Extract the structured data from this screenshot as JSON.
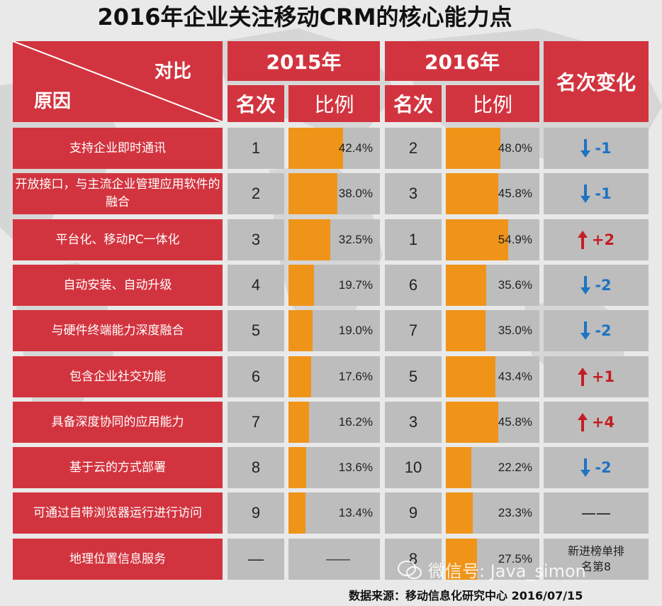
{
  "title": "2016年企业关注移动CRM的核心能力点",
  "header": {
    "compare": "对比",
    "reason": "原因",
    "year2015": "2015年",
    "year2016": "2016年",
    "rank": "名次",
    "ratio": "比例",
    "change": "名次变化"
  },
  "colors": {
    "red": "#d2343f",
    "orange": "#ef9419",
    "down": "#1f73c4",
    "up": "#c41e24",
    "gray": "#bdbdbd"
  },
  "chart_data": {
    "type": "table",
    "title": "2016年企业关注移动CRM的核心能力点",
    "columns": [
      "原因",
      "2015年 名次",
      "2015年 比例",
      "2016年 名次",
      "2016年 比例",
      "名次变化"
    ],
    "rows": [
      {
        "reason": "支持企业即时通讯",
        "rank2015": "1",
        "pct2015": 42.4,
        "pct2015_label": "42.4%",
        "rank2016": "2",
        "pct2016": 48.0,
        "pct2016_label": "48.0%",
        "dir": "down",
        "change": "-1",
        "note": ""
      },
      {
        "reason": "开放接口，与主流企业管理应用软件的融合",
        "rank2015": "2",
        "pct2015": 38.0,
        "pct2015_label": "38.0%",
        "rank2016": "3",
        "pct2016": 45.8,
        "pct2016_label": "45.8%",
        "dir": "down",
        "change": "-1",
        "note": ""
      },
      {
        "reason": "平台化、移动PC一体化",
        "rank2015": "3",
        "pct2015": 32.5,
        "pct2015_label": "32.5%",
        "rank2016": "1",
        "pct2016": 54.9,
        "pct2016_label": "54.9%",
        "dir": "up",
        "change": "+2",
        "note": ""
      },
      {
        "reason": "自动安装、自动升级",
        "rank2015": "4",
        "pct2015": 19.7,
        "pct2015_label": "19.7%",
        "rank2016": "6",
        "pct2016": 35.6,
        "pct2016_label": "35.6%",
        "dir": "down",
        "change": "-2",
        "note": ""
      },
      {
        "reason": "与硬件终端能力深度融合",
        "rank2015": "5",
        "pct2015": 19.0,
        "pct2015_label": "19.0%",
        "rank2016": "7",
        "pct2016": 35.0,
        "pct2016_label": "35.0%",
        "dir": "down",
        "change": "-2",
        "note": ""
      },
      {
        "reason": "包含企业社交功能",
        "rank2015": "6",
        "pct2015": 17.6,
        "pct2015_label": "17.6%",
        "rank2016": "5",
        "pct2016": 43.4,
        "pct2016_label": "43.4%",
        "dir": "up",
        "change": "+1",
        "note": ""
      },
      {
        "reason": "具备深度协同的应用能力",
        "rank2015": "7",
        "pct2015": 16.2,
        "pct2015_label": "16.2%",
        "rank2016": "3",
        "pct2016": 45.8,
        "pct2016_label": "45.8%",
        "dir": "up",
        "change": "+4",
        "note": ""
      },
      {
        "reason": "基于云的方式部署",
        "rank2015": "8",
        "pct2015": 13.6,
        "pct2015_label": "13.6%",
        "rank2016": "10",
        "pct2016": 22.2,
        "pct2016_label": "22.2%",
        "dir": "down",
        "change": "-2",
        "note": ""
      },
      {
        "reason": "可通过自带浏览器运行进行访问",
        "rank2015": "9",
        "pct2015": 13.4,
        "pct2015_label": "13.4%",
        "rank2016": "9",
        "pct2016": 23.3,
        "pct2016_label": "23.3%",
        "dir": "none",
        "change": "——",
        "note": ""
      },
      {
        "reason": "地理位置信息服务",
        "rank2015": "—",
        "pct2015": 0,
        "pct2015_label": "——",
        "rank2016": "8",
        "pct2016": 27.5,
        "pct2016_label": "27.5%",
        "dir": "new",
        "change": "",
        "note": "新进榜单排名第8"
      }
    ],
    "bar_scale_max": 100
  },
  "footer": {
    "source": "数据来源：移动信息化研究中心 2016/07/15"
  },
  "watermark": {
    "text": "微信号: Java_simon"
  }
}
